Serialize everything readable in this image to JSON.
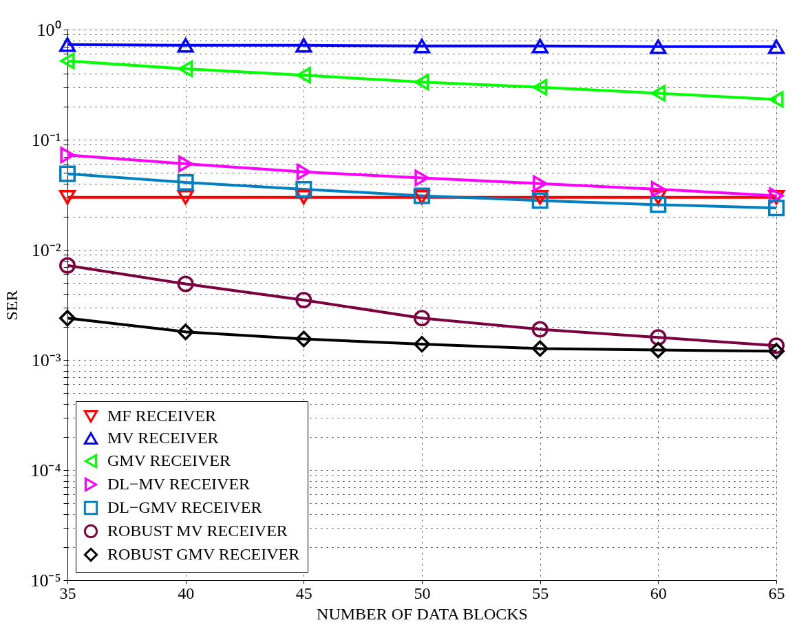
{
  "chart_data": {
    "type": "line",
    "xlabel": "NUMBER OF DATA BLOCKS",
    "ylabel": "SER",
    "x": [
      35,
      40,
      45,
      50,
      55,
      60,
      65
    ],
    "series": [
      {
        "name": "MF RECEIVER",
        "color": "#ff0000",
        "marker": "triangle-down",
        "values": [
          0.03,
          0.03,
          0.03,
          0.03,
          0.03,
          0.03,
          0.03
        ]
      },
      {
        "name": "MV RECEIVER",
        "color": "#0000ff",
        "marker": "triangle-up",
        "values": [
          0.73,
          0.72,
          0.72,
          0.71,
          0.71,
          0.7,
          0.7
        ]
      },
      {
        "name": "GMV RECEIVER",
        "color": "#00ff00",
        "marker": "triangle-left",
        "values": [
          0.52,
          0.44,
          0.385,
          0.334,
          0.3,
          0.264,
          0.232
        ]
      },
      {
        "name": "DL−MV RECEIVER",
        "color": "#ff00ff",
        "marker": "triangle-right",
        "values": [
          0.0726,
          0.0605,
          0.051,
          0.045,
          0.04,
          0.0355,
          0.031
        ]
      },
      {
        "name": "DL−GMV RECEIVER",
        "color": "#0080c0",
        "marker": "square",
        "values": [
          0.049,
          0.041,
          0.0355,
          0.031,
          0.028,
          0.0257,
          0.024
        ]
      },
      {
        "name": "ROBUST MV RECEIVER",
        "color": "#7a0040",
        "marker": "circle",
        "values": [
          0.0072,
          0.0049,
          0.0035,
          0.0024,
          0.0019,
          0.0016,
          0.00135
        ]
      },
      {
        "name": "ROBUST GMV RECEIVER",
        "color": "#000000",
        "marker": "diamond",
        "values": [
          0.0024,
          0.0018,
          0.00155,
          0.00139,
          0.00127,
          0.00123,
          0.0012
        ]
      }
    ],
    "xlim": [
      35,
      65
    ],
    "xticks": [
      35,
      40,
      45,
      50,
      55,
      60,
      65
    ],
    "ylim": [
      1e-05,
      1
    ],
    "log": true,
    "yticks": [
      {
        "value": 1,
        "label": "10⁰"
      },
      {
        "value": 0.1,
        "label": "10⁻¹"
      },
      {
        "value": 0.01,
        "label": "10⁻²"
      },
      {
        "value": 0.001,
        "label": "10⁻³"
      },
      {
        "value": 0.0001,
        "label": "10⁻⁴"
      },
      {
        "value": 1e-05,
        "label": "10⁻⁵"
      },
      {
        "value": 0.9,
        "label": null
      },
      {
        "value": 0.8,
        "label": null
      },
      {
        "value": 0.7,
        "label": null
      },
      {
        "value": 0.6,
        "label": null
      },
      {
        "value": 0.5,
        "label": null
      },
      {
        "value": 0.4,
        "label": null
      },
      {
        "value": 0.3,
        "label": null
      },
      {
        "value": 0.2,
        "label": null
      },
      {
        "value": 0.09,
        "label": null
      },
      {
        "value": 0.08,
        "label": null
      },
      {
        "value": 0.07,
        "label": null
      },
      {
        "value": 0.06,
        "label": null
      },
      {
        "value": 0.05,
        "label": null
      },
      {
        "value": 0.04,
        "label": null
      },
      {
        "value": 0.03,
        "label": null
      },
      {
        "value": 0.02,
        "label": null
      },
      {
        "value": 0.009,
        "label": null
      },
      {
        "value": 0.008,
        "label": null
      },
      {
        "value": 0.007,
        "label": null
      },
      {
        "value": 0.006,
        "label": null
      },
      {
        "value": 0.005,
        "label": null
      },
      {
        "value": 0.004,
        "label": null
      },
      {
        "value": 0.003,
        "label": null
      },
      {
        "value": 0.002,
        "label": null
      },
      {
        "value": 0.0009,
        "label": null
      },
      {
        "value": 0.0008,
        "label": null
      },
      {
        "value": 0.0007,
        "label": null
      },
      {
        "value": 0.0006,
        "label": null
      },
      {
        "value": 0.0005,
        "label": null
      },
      {
        "value": 0.0004,
        "label": null
      },
      {
        "value": 0.0003,
        "label": null
      },
      {
        "value": 0.0002,
        "label": null
      },
      {
        "value": 9e-05,
        "label": null
      },
      {
        "value": 8e-05,
        "label": null
      },
      {
        "value": 7e-05,
        "label": null
      },
      {
        "value": 6e-05,
        "label": null
      },
      {
        "value": 5e-05,
        "label": null
      },
      {
        "value": 4e-05,
        "label": null
      },
      {
        "value": 3e-05,
        "label": null
      },
      {
        "value": 2e-05,
        "label": null
      }
    ],
    "grid": true,
    "legend": "bottom left",
    "line_style": "solid"
  }
}
